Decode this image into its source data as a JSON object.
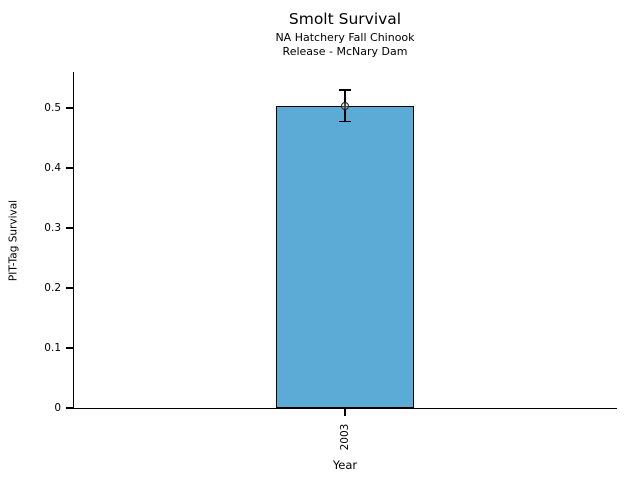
{
  "chart_data": {
    "type": "bar",
    "title": "Smolt Survival",
    "subtitle1": "NA Hatchery Fall Chinook",
    "subtitle2": "Release - McNary Dam",
    "xlabel": "Year",
    "ylabel": "PIT-Tag Survival",
    "categories": [
      "2003"
    ],
    "values": [
      0.503
    ],
    "error_low": [
      0.477
    ],
    "error_high": [
      0.53
    ],
    "ylim": [
      0,
      0.558
    ],
    "yticks": [
      0,
      0.1,
      0.2,
      0.3,
      0.4,
      0.5
    ],
    "ytick_labels": [
      "0",
      "0.1",
      "0.2",
      "0.3",
      "0.4",
      "0.5"
    ],
    "grid": "off",
    "legend": "none",
    "bar_color": "#5BABD6",
    "bar_edge_color": "#000000",
    "axis_color": "#000000",
    "background_color": "#FFFFFF"
  }
}
